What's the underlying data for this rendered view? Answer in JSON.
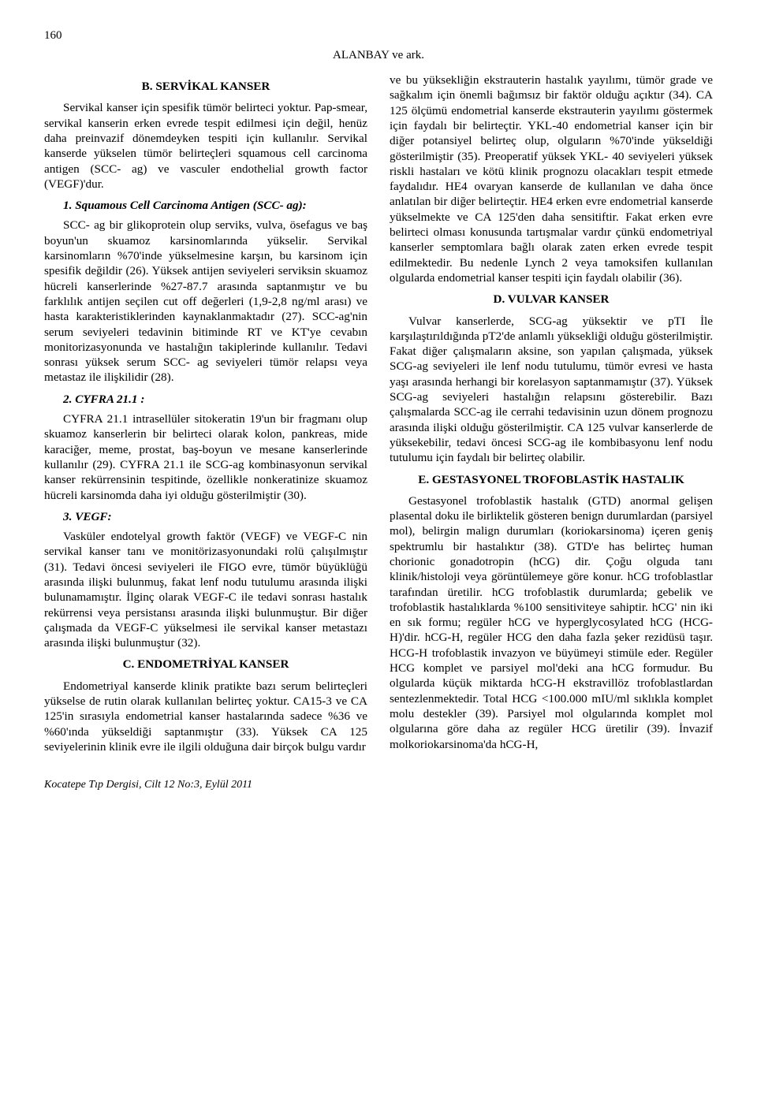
{
  "page_number": "160",
  "running_head": "ALANBAY ve ark.",
  "left": {
    "heading_b": "B. SERVİKAL KANSER",
    "p1": "Servikal kanser için spesifik tümör belirteci yoktur. Pap-smear, servikal kanserin erken evrede tespit edilmesi için değil, henüz daha preinvazif dönemdeyken tespiti için kullanılır. Servikal kanserde yükselen tümör belirteçleri squamous cell carcinoma antigen (SCC- ag) ve vasculer endothelial growth factor (VEGF)'dur.",
    "sub1": "1. Squamous Cell Carcinoma Antigen (SCC- ag):",
    "p2": "SCC- ag bir glikoprotein olup serviks, vulva, ösefagus ve baş boyun'un skuamoz karsinomlarında yükselir. Servikal karsinomların %70'inde yükselmesine karşın, bu karsinom için spesifik değildir (26). Yüksek antijen seviyeleri serviksin skuamoz hücreli kanserlerinde %27-87.7 arasında saptanmıştır ve bu farklılık antijen seçilen cut off değerleri (1,9-2,8 ng/ml arası) ve hasta karakteristiklerinden kaynaklanmaktadır (27). SCC-ag'nin serum seviyeleri tedavinin bitiminde RT ve KT'ye cevabın monitorizasyonunda ve hastalığın takiplerinde kullanılır. Tedavi sonrası yüksek serum SCC- ag seviyeleri tümör relapsı veya metastaz ile ilişkilidir (28).",
    "sub2": "2. CYFRA 21.1 :",
    "p3": "CYFRA 21.1 intrasellüler sitokeratin 19'un bir fragmanı olup skuamoz kanserlerin bir belirteci olarak kolon, pankreas, mide karaciğer, meme, prostat, baş-boyun ve mesane kanserlerinde kullanılır (29). CYFRA 21.1 ile SCG-ag kombinasyonun servikal kanser rekürrensinin tespitinde, özellikle nonkeratinize skuamoz hücreli karsinomda daha iyi olduğu gösterilmiştir (30).",
    "sub3": "3. VEGF:",
    "p4": "Vasküler endotelyal growth faktör (VEGF) ve VEGF-C nin servikal kanser tanı ve monitörizasyonundaki rolü çalışılmıştır (31). Tedavi öncesi seviyeleri ile FIGO evre, tümör büyüklüğü arasında ilişki bulunmuş, fakat lenf nodu tutulumu arasında ilişki bulunamamıştır. İlginç olarak VEGF-C ile tedavi sonrası hastalık rekürrensi veya persistansı arasında ilişki bulunmuştur. Bir diğer çalışmada da VEGF-C yükselmesi ile servikal kanser metastazı arasında ilişki bulunmuştur (32).",
    "heading_c": "C. ENDOMETRİYAL KANSER",
    "p5": "Endometriyal kanserde klinik pratikte bazı serum belirteçleri yükselse de rutin olarak kullanılan belirteç yoktur. CA15-3 ve CA 125'in sırasıyla endometrial kanser hastalarında sadece %36 ve %60'ında yükseldiği saptanmıştır (33). Yüksek CA 125 seviyelerinin klinik evre ile ilgili olduğuna dair birçok bulgu vardır"
  },
  "right": {
    "p1": "ve bu yüksekliğin ekstrauterin hastalık yayılımı, tümör grade ve sağkalım için önemli bağımsız bir faktör olduğu açıktır (34). CA 125 ölçümü endometrial kanserde ekstrauterin yayılımı göstermek için faydalı bir belirteçtir. YKL-40 endometrial kanser için bir diğer potansiyel belirteç olup, olguların %70'inde yükseldiği gösterilmiştir (35). Preoperatif yüksek YKL- 40 seviyeleri yüksek riskli hastaları ve kötü klinik prognozu olacakları tespit etmede faydalıdır. HE4 ovaryan kanserde de kullanılan ve daha önce anlatılan bir diğer belirteçtir. HE4 erken evre endometrial kanserde yükselmekte ve CA 125'den daha sensitiftir. Fakat erken evre belirteci olması konusunda tartışmalar vardır çünkü endometriyal kanserler semptomlara bağlı olarak zaten erken evrede tespit edilmektedir. Bu nedenle Lynch 2 veya tamoksifen kullanılan olgularda endometrial kanser tespiti için faydalı olabilir (36).",
    "heading_d": "D. VULVAR KANSER",
    "p2": "Vulvar kanserlerde, SCG-ag yüksektir ve pTI İle karşılaştırıldığında pT2'de anlamlı yüksekliği olduğu gösterilmiştir. Fakat diğer çalışmaların aksine, son yapılan çalışmada, yüksek SCG-ag seviyeleri ile lenf nodu tutulumu, tümör evresi ve hasta yaşı arasında herhangi bir korelasyon saptanmamıştır (37). Yüksek SCG-ag seviyeleri hastalığın relapsını gösterebilir. Bazı çalışmalarda SCC-ag ile cerrahi tedavisinin uzun dönem prognozu arasında ilişki olduğu gösterilmiştir. CA 125 vulvar kanserlerde de yüksekebilir, tedavi öncesi SCG-ag ile kombibasyonu lenf nodu tutulumu için faydalı bir belirteç olabilir.",
    "heading_e": "E. GESTASYONEL TROFOBLASTİK HASTALIK",
    "p3": "Gestasyonel trofoblastik hastalık (GTD) anormal gelişen plasental doku ile birliktelik gösteren benign durumlardan (parsiyel mol), belirgin malign durumları (koriokarsinoma) içeren geniş spektrumlu bir hastalıktır (38). GTD'e has belirteç human chorionic gonadotropin (hCG) dir. Çoğu olguda tanı klinik/histoloji veya görüntülemeye göre konur. hCG trofoblastlar tarafından üretilir. hCG trofoblastik durumlarda; gebelik ve trofoblastik hastalıklarda %100 sensitiviteye sahiptir. hCG' nin iki en sık formu; regüler hCG ve hyperglycosylated hCG (HCG-H)'dir. hCG-H, regüler HCG den daha fazla şeker rezidüsü taşır. HCG-H trofoblastik invazyon ve büyümeyi stimüle eder. Regüler HCG komplet ve parsiyel mol'deki ana hCG formudur. Bu olgularda küçük miktarda hCG-H ekstravillöz trofoblastlardan sentezlenmektedir. Total HCG <100.000 mIU/ml sıklıkla komplet molu destekler (39). Parsiyel mol olgularında komplet mol olgularına göre daha az regüler HCG üretilir (39). İnvazif molkoriokarsinoma'da hCG-H,"
  },
  "footer": "Kocatepe Tıp Dergisi, Cilt 12 No:3, Eylül 2011"
}
